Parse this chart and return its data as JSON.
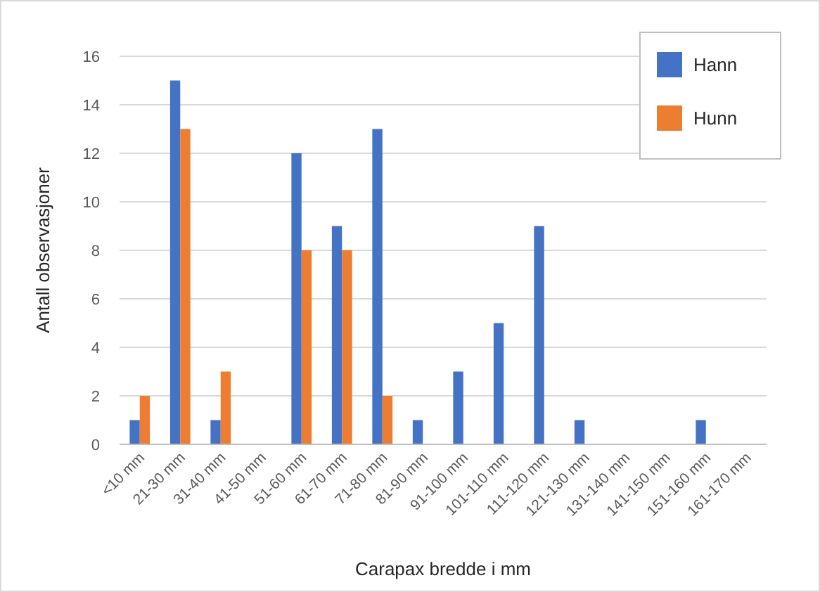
{
  "chart_data": {
    "type": "bar",
    "xlabel": "Carapax bredde i mm",
    "ylabel": "Antall observasjoner",
    "categories": [
      "<10 mm",
      "21-30 mm",
      "31-40 mm",
      "41-50 mm",
      "51-60 mm",
      "61-70 mm",
      "71-80 mm",
      "81-90 mm",
      "91-100 mm",
      "101-110 mm",
      "111-120 mm",
      "121-130 mm",
      "131-140 mm",
      "141-150 mm",
      "151-160 mm",
      "161-170 mm"
    ],
    "series": [
      {
        "name": "Hann",
        "color": "#4472c4",
        "values": [
          1,
          15,
          1,
          0,
          12,
          9,
          13,
          1,
          3,
          5,
          9,
          1,
          0,
          0,
          1,
          0
        ]
      },
      {
        "name": "Hunn",
        "color": "#ed7d31",
        "values": [
          2,
          13,
          3,
          0,
          8,
          8,
          2,
          0,
          0,
          0,
          0,
          0,
          0,
          0,
          0,
          0
        ]
      }
    ],
    "ylim": [
      0,
      16
    ],
    "yticks": [
      0,
      2,
      4,
      6,
      8,
      10,
      12,
      14,
      16
    ],
    "grid": "y",
    "legend": "top right"
  }
}
